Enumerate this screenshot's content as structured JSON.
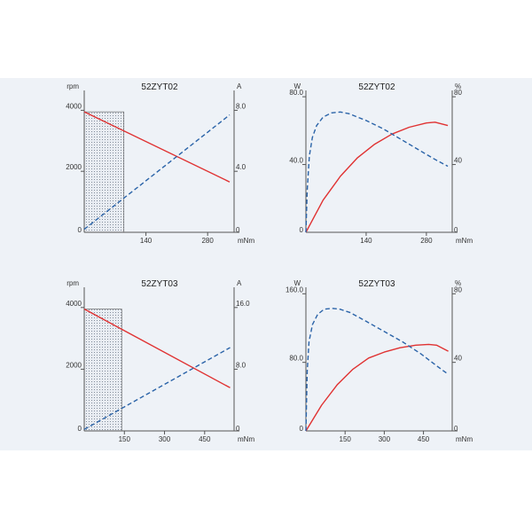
{
  "colors": {
    "speed_torque": "#e03232",
    "current_or_efficiency": "#2a63a8",
    "axis": "#555555",
    "background": "#eef2f7"
  },
  "chart_data": [
    {
      "type": "line",
      "title": "52ZYT02",
      "ylabel_left": "rpm",
      "ylabel_right": "A",
      "xlabel": "mNm",
      "xlim": [
        0,
        340
      ],
      "ylim_left": [
        0,
        5000
      ],
      "ylim_right": [
        0,
        10
      ],
      "xticks": [
        140,
        280
      ],
      "yticks_left": [
        0,
        2000,
        4000
      ],
      "yticks_left_labels": [
        "0",
        "2000",
        "4000"
      ],
      "yticks_right": [
        0,
        4,
        8
      ],
      "yticks_right_labels": [
        "0",
        "4.0",
        "8.0"
      ],
      "shaded_region_x": [
        0,
        90
      ],
      "series": [
        {
          "axis": "left",
          "style": "solid",
          "color": "#e03232",
          "x": [
            0,
            330
          ],
          "y": [
            3950,
            1650
          ]
        },
        {
          "axis": "right",
          "style": "dashed",
          "color": "#2a63a8",
          "x": [
            0,
            330
          ],
          "y": [
            0.2,
            7.7
          ]
        }
      ]
    },
    {
      "type": "line",
      "title": "52ZYT02",
      "ylabel_left": "W",
      "ylabel_right": "%",
      "xlabel": "mNm",
      "xlim": [
        0,
        340
      ],
      "ylim_left": [
        0,
        90
      ],
      "ylim_right": [
        0,
        90
      ],
      "xticks": [
        140,
        280
      ],
      "yticks_left": [
        0,
        40,
        80
      ],
      "yticks_left_labels": [
        "0",
        "40.0",
        "80.0"
      ],
      "yticks_right": [
        0,
        40,
        80
      ],
      "yticks_right_labels": [
        "0",
        "40",
        "80"
      ],
      "series": [
        {
          "axis": "left",
          "style": "solid",
          "color": "#e03232",
          "x": [
            0,
            40,
            80,
            120,
            160,
            200,
            240,
            280,
            300,
            330
          ],
          "y": [
            0,
            19,
            33,
            44,
            52,
            58,
            62,
            64.5,
            65,
            63
          ]
        },
        {
          "axis": "right",
          "style": "dashed",
          "color": "#2a63a8",
          "x": [
            0,
            3,
            8,
            15,
            25,
            40,
            60,
            80,
            100,
            140,
            180,
            220,
            260,
            300,
            330
          ],
          "y": [
            0,
            25,
            45,
            56,
            63,
            68,
            70.5,
            71,
            70,
            66,
            61,
            55,
            49,
            43,
            39
          ]
        }
      ]
    },
    {
      "type": "line",
      "title": "52ZYT03",
      "ylabel_left": "rpm",
      "ylabel_right": "A",
      "xlabel": "mNm",
      "xlim": [
        0,
        560
      ],
      "ylim_left": [
        0,
        5000
      ],
      "ylim_right": [
        0,
        20
      ],
      "xticks": [
        150,
        300,
        450
      ],
      "yticks_left": [
        0,
        2000,
        4000
      ],
      "yticks_left_labels": [
        "0",
        "2000",
        "4000"
      ],
      "yticks_right": [
        0,
        8,
        16
      ],
      "yticks_right_labels": [
        "0",
        "8.0",
        "16.0"
      ],
      "shaded_region_x": [
        0,
        140
      ],
      "series": [
        {
          "axis": "left",
          "style": "solid",
          "color": "#e03232",
          "x": [
            0,
            545
          ],
          "y": [
            3950,
            1400
          ]
        },
        {
          "axis": "right",
          "style": "dashed",
          "color": "#2a63a8",
          "x": [
            0,
            545
          ],
          "y": [
            0.2,
            10.8
          ]
        }
      ]
    },
    {
      "type": "line",
      "title": "52ZYT03",
      "ylabel_left": "W",
      "ylabel_right": "%",
      "xlabel": "mNm",
      "xlim": [
        0,
        560
      ],
      "ylim_left": [
        0,
        180
      ],
      "ylim_right": [
        0,
        90
      ],
      "xticks": [
        150,
        300,
        450
      ],
      "yticks_left": [
        0,
        80,
        160
      ],
      "yticks_left_labels": [
        "0",
        "80.0",
        "160.0"
      ],
      "yticks_right": [
        0,
        40,
        80
      ],
      "yticks_right_labels": [
        "0",
        "40",
        "80"
      ],
      "series": [
        {
          "axis": "left",
          "style": "solid",
          "color": "#e03232",
          "x": [
            0,
            60,
            120,
            180,
            240,
            300,
            360,
            420,
            470,
            500,
            545
          ],
          "y": [
            0,
            30,
            54,
            72,
            85,
            92,
            97,
            100,
            101,
            100,
            93
          ]
        },
        {
          "axis": "right",
          "style": "dashed",
          "color": "#2a63a8",
          "x": [
            0,
            5,
            12,
            25,
            45,
            70,
            100,
            130,
            170,
            230,
            300,
            370,
            440,
            500,
            545
          ],
          "y": [
            0,
            35,
            52,
            62,
            68,
            71,
            71.5,
            71,
            69,
            64,
            58,
            52,
            45,
            38,
            33
          ]
        }
      ]
    }
  ]
}
